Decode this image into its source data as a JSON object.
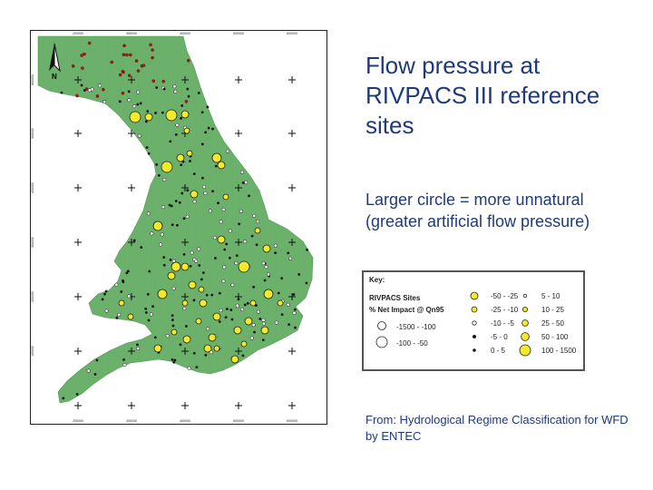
{
  "title": "Flow pressure at RIVPACS III reference sites",
  "subtitle": "Larger circle = more unnatural (greater artificial flow pressure)",
  "source": "From: Hydrological Regime Classification for WFD by ENTEC",
  "map": {
    "north_label": "N",
    "x_ticks": [
      "200000",
      "300000",
      "400000",
      "500000",
      "600000"
    ],
    "y_ticks": [
      "600000",
      "500000",
      "400000",
      "300000",
      "200000",
      "100000"
    ],
    "colors": {
      "land": "#6cb16c",
      "site_fill": "#f2ea2a",
      "northern_site": "#b01818"
    }
  },
  "legend": {
    "key_label": "Key:",
    "heading": "RIVPACS Sites",
    "subheading": "% Net Impact @ Qn95",
    "items": [
      {
        "label": "-1500 - -100"
      },
      {
        "label": "-100 - -50"
      },
      {
        "label": "-50 - -25"
      },
      {
        "label": "-25 - -10"
      },
      {
        "label": "-10 - -5"
      },
      {
        "label": "-5 - 0"
      },
      {
        "label": "0 - 5"
      },
      {
        "label": "5 - 10"
      },
      {
        "label": "10 - 25"
      },
      {
        "label": "25 - 50"
      },
      {
        "label": "50 - 100"
      },
      {
        "label": "100 - 1500"
      }
    ]
  }
}
